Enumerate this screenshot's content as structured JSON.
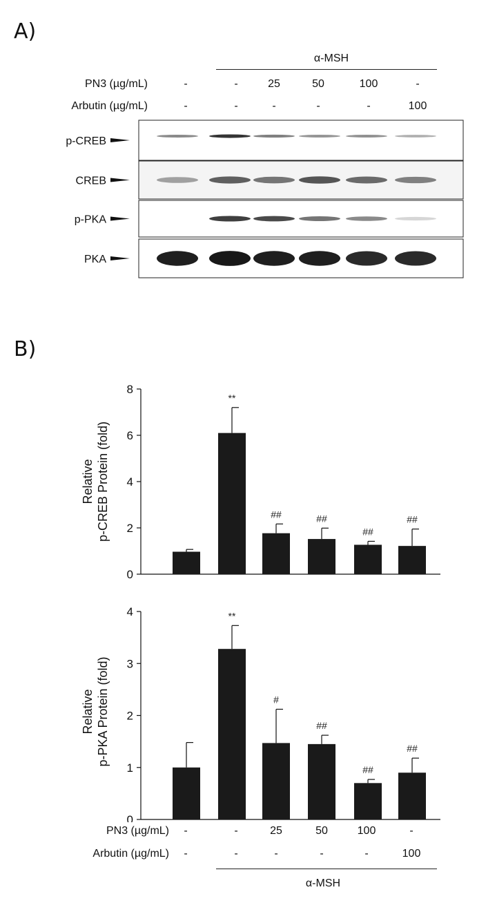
{
  "panel_a_label": "A)",
  "panel_b_label": "B)",
  "treatment": {
    "group_label": "α-MSH",
    "rows": [
      {
        "label": "PN3 (µg/mL)",
        "values": [
          "-",
          "-",
          "25",
          "50",
          "100",
          "-"
        ]
      },
      {
        "label": "Arbutin (µg/mL)",
        "values": [
          "-",
          "-",
          "-",
          "-",
          "-",
          "100"
        ]
      }
    ]
  },
  "blot": {
    "rows": [
      {
        "label": "p-CREB",
        "intensity": [
          0.45,
          0.85,
          0.5,
          0.4,
          0.42,
          0.28
        ]
      },
      {
        "label": "CREB",
        "intensity": [
          0.35,
          0.65,
          0.55,
          0.7,
          0.6,
          0.5
        ]
      },
      {
        "label": "p-PKA",
        "intensity": [
          0.0,
          0.8,
          0.75,
          0.55,
          0.45,
          0.1
        ]
      },
      {
        "label": "PKA",
        "intensity": [
          0.95,
          0.98,
          0.95,
          0.95,
          0.9,
          0.9
        ]
      }
    ]
  },
  "chart_data": [
    {
      "type": "bar",
      "ylabel_line1": "Relative",
      "ylabel_line2": "p-CREB Protein (fold)",
      "ylim": [
        0,
        8
      ],
      "yticks": [
        "0",
        "2",
        "4",
        "6",
        "8"
      ],
      "values": [
        0.97,
        6.1,
        1.77,
        1.52,
        1.27,
        1.22
      ],
      "errors": [
        0.1,
        1.1,
        0.4,
        0.47,
        0.15,
        0.73
      ],
      "annotations": [
        "",
        "**",
        "##",
        "##",
        "##",
        "##"
      ],
      "colors": {
        "bar": "#1a1a1a"
      }
    },
    {
      "type": "bar",
      "ylabel_line1": "Relative",
      "ylabel_line2": "p-PKA Protein (fold)",
      "ylim": [
        0,
        4
      ],
      "yticks": [
        "0",
        "1",
        "2",
        "3",
        "4"
      ],
      "values": [
        1.0,
        3.28,
        1.47,
        1.45,
        0.7,
        0.9
      ],
      "errors": [
        0.48,
        0.45,
        0.65,
        0.17,
        0.07,
        0.28
      ],
      "annotations": [
        "",
        "**",
        "#",
        "##",
        "##",
        "##"
      ],
      "colors": {
        "bar": "#1a1a1a"
      }
    }
  ]
}
